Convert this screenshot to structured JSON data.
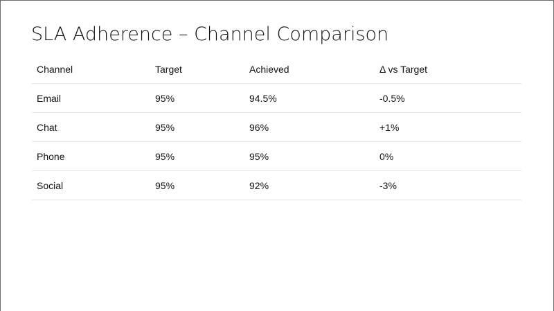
{
  "slide": {
    "title": "SLA Adherence – Channel Comparison"
  },
  "table": {
    "headers": [
      "Channel",
      "Target",
      "Achieved",
      "Δ vs Target"
    ],
    "rows": [
      [
        "Email",
        "95%",
        "94.5%",
        "-0.5%"
      ],
      [
        "Chat",
        "95%",
        "96%",
        "+1%"
      ],
      [
        "Phone",
        "95%",
        "95%",
        "0%"
      ],
      [
        "Social",
        "95%",
        "92%",
        "-3%"
      ]
    ]
  }
}
